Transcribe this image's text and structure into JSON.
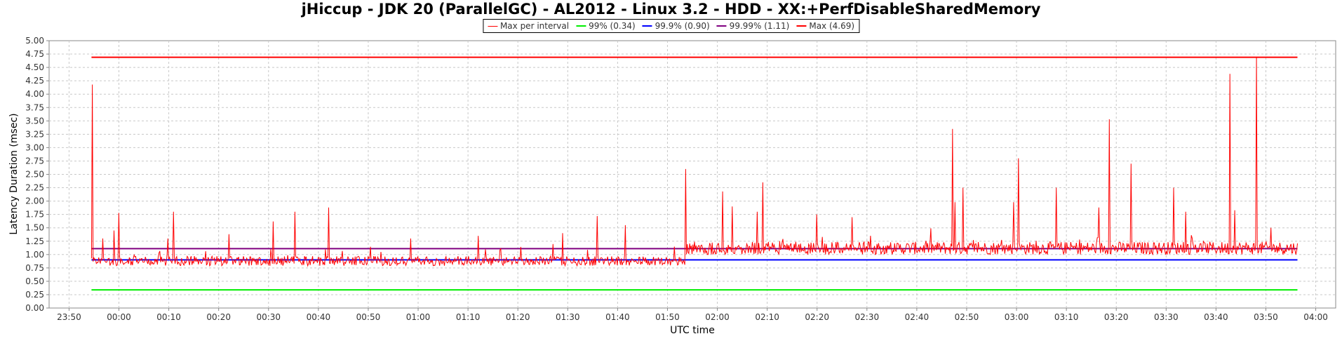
{
  "chart_data": {
    "type": "line",
    "title": "jHiccup - JDK 20 (ParallelGC) - AL2012 - Linux 3.2 - HDD - XX:+PerfDisableSharedMemory",
    "xlabel": "UTC time",
    "ylabel": "Latency Duration (msec)",
    "ylim": [
      0,
      5
    ],
    "xlim": [
      "23:46",
      "04:04"
    ],
    "grid": true,
    "legend_position": "top-center",
    "x_ticks": [
      "23:50",
      "00:00",
      "00:10",
      "00:20",
      "00:30",
      "00:40",
      "00:50",
      "01:00",
      "01:10",
      "01:20",
      "01:30",
      "01:40",
      "01:50",
      "02:00",
      "02:10",
      "02:20",
      "02:30",
      "02:40",
      "02:50",
      "03:00",
      "03:10",
      "03:20",
      "03:30",
      "03:40",
      "03:50",
      "04:00"
    ],
    "y_ticks": [
      "0.00",
      "0.25",
      "0.50",
      "0.75",
      "1.00",
      "1.25",
      "1.50",
      "1.75",
      "2.00",
      "2.25",
      "2.50",
      "2.75",
      "3.00",
      "3.25",
      "3.50",
      "3.75",
      "4.00",
      "4.25",
      "4.50",
      "4.75",
      "5.00"
    ],
    "series": [
      {
        "name": "Max per interval",
        "color": "#ff0000",
        "x_start": "23:54:30",
        "x_end": "03:56:20",
        "baseline_segments": [
          {
            "from": "23:54:30",
            "to": "01:53:40",
            "level": 0.88,
            "noise": 0.09
          },
          {
            "from": "01:53:40",
            "to": "03:56:20",
            "level": 1.12,
            "noise": 0.12
          }
        ],
        "peaks": [
          {
            "x": "23:54:40",
            "y": 4.18
          },
          {
            "x": "23:56:50",
            "y": 1.3
          },
          {
            "x": "23:59:00",
            "y": 1.45
          },
          {
            "x": "00:00:00",
            "y": 1.78
          },
          {
            "x": "00:09:50",
            "y": 1.3
          },
          {
            "x": "00:11:00",
            "y": 1.8
          },
          {
            "x": "00:22:00",
            "y": 1.38
          },
          {
            "x": "00:31:00",
            "y": 1.62
          },
          {
            "x": "00:35:20",
            "y": 1.8
          },
          {
            "x": "00:42:00",
            "y": 1.88
          },
          {
            "x": "00:58:30",
            "y": 1.3
          },
          {
            "x": "01:12:00",
            "y": 1.35
          },
          {
            "x": "01:29:00",
            "y": 1.4
          },
          {
            "x": "01:35:50",
            "y": 1.72
          },
          {
            "x": "01:41:30",
            "y": 1.55
          },
          {
            "x": "01:53:40",
            "y": 2.6
          },
          {
            "x": "02:01:00",
            "y": 2.18
          },
          {
            "x": "02:03:00",
            "y": 1.9
          },
          {
            "x": "02:08:00",
            "y": 1.8
          },
          {
            "x": "02:09:10",
            "y": 2.35
          },
          {
            "x": "02:20:00",
            "y": 1.75
          },
          {
            "x": "02:27:00",
            "y": 1.7
          },
          {
            "x": "02:47:10",
            "y": 3.35
          },
          {
            "x": "02:47:40",
            "y": 1.98
          },
          {
            "x": "02:49:20",
            "y": 2.25
          },
          {
            "x": "02:59:30",
            "y": 1.98
          },
          {
            "x": "03:00:20",
            "y": 2.8
          },
          {
            "x": "03:08:00",
            "y": 2.25
          },
          {
            "x": "03:16:30",
            "y": 1.88
          },
          {
            "x": "03:18:40",
            "y": 3.53
          },
          {
            "x": "03:23:00",
            "y": 2.7
          },
          {
            "x": "03:31:30",
            "y": 2.25
          },
          {
            "x": "03:34:00",
            "y": 1.8
          },
          {
            "x": "03:42:50",
            "y": 4.38
          },
          {
            "x": "03:43:50",
            "y": 1.83
          },
          {
            "x": "03:48:10",
            "y": 4.69
          },
          {
            "x": "03:51:00",
            "y": 1.5
          }
        ]
      },
      {
        "name": "99% (0.34)",
        "color": "#00ee00",
        "x": [
          "23:54:30",
          "03:56:20"
        ],
        "y": [
          0.34,
          0.34
        ]
      },
      {
        "name": "99.9% (0.90)",
        "color": "#0000ff",
        "x": [
          "23:54:30",
          "03:56:20"
        ],
        "y": [
          0.9,
          0.9
        ]
      },
      {
        "name": "99.99% (1.11)",
        "color": "#800080",
        "x": [
          "23:54:30",
          "03:56:20"
        ],
        "y": [
          1.11,
          1.11
        ]
      },
      {
        "name": "Max (4.69)",
        "color": "#ff0000",
        "x": [
          "23:54:30",
          "03:56:20"
        ],
        "y": [
          4.69,
          4.69
        ]
      }
    ]
  }
}
